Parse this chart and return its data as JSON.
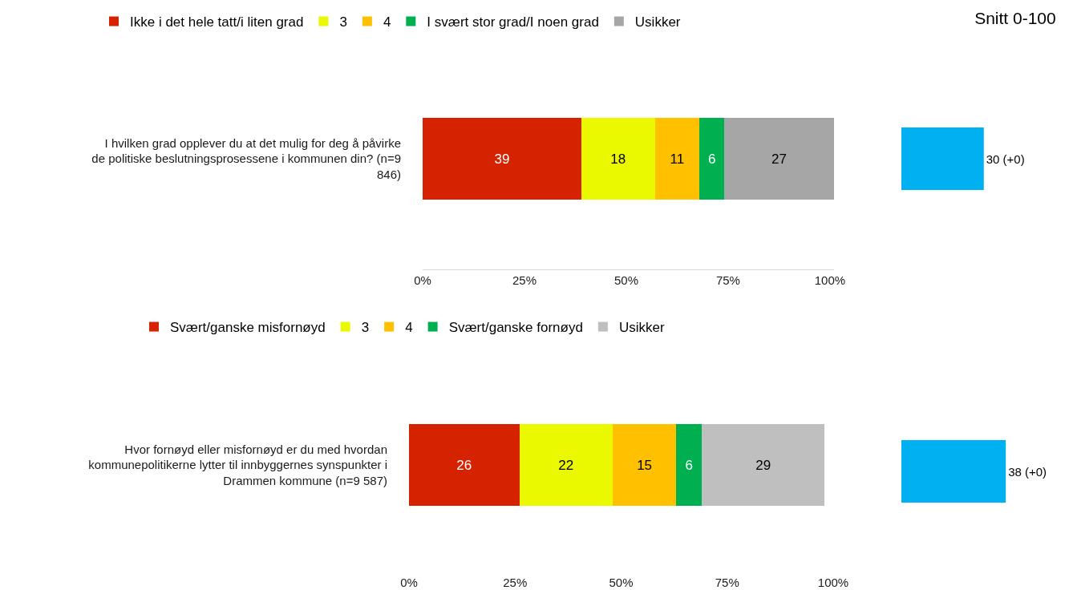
{
  "chart_data": [
    {
      "type": "bar",
      "orientation": "horizontal",
      "stacked": true,
      "categories": [
        "I hvilken grad opplever du at det mulig for deg å påvirke de politiske beslutningsprosessene i kommunen din? (n=9 846)"
      ],
      "series": [
        {
          "name": "Ikke i det hele tatt/i liten grad",
          "color": "#d52200",
          "values": [
            39
          ]
        },
        {
          "name": "3",
          "color": "#eaf800",
          "values": [
            18
          ]
        },
        {
          "name": "4",
          "color": "#ffc000",
          "values": [
            11
          ]
        },
        {
          "name": "I svært stor grad/I noen grad",
          "color": "#00b050",
          "values": [
            6
          ]
        },
        {
          "name": "Usikker",
          "color": "#a6a6a6",
          "values": [
            27
          ]
        }
      ],
      "xlim": [
        0,
        101
      ],
      "xticks": [
        {
          "value": 0,
          "label": "0%"
        },
        {
          "value": 25,
          "label": "25%"
        },
        {
          "value": 50,
          "label": "50%"
        },
        {
          "value": 75,
          "label": "75%"
        },
        {
          "value": 100,
          "label": "100%"
        }
      ],
      "data_labels": true,
      "legend": "top"
    },
    {
      "type": "bar",
      "orientation": "horizontal",
      "stacked": true,
      "categories": [
        "Hvor fornøyd eller misfornøyd er du med hvordan kommunepolitikerne lytter til innbyggernes synspunkter i Drammen kommune (n=9 587)"
      ],
      "series": [
        {
          "name": "Svært/ganske misfornøyd",
          "color": "#d52200",
          "values": [
            26
          ]
        },
        {
          "name": "3",
          "color": "#eaf800",
          "values": [
            22
          ]
        },
        {
          "name": "4",
          "color": "#ffc000",
          "values": [
            15
          ]
        },
        {
          "name": "Svært/ganske fornøyd",
          "color": "#00b050",
          "values": [
            6
          ]
        },
        {
          "name": "Usikker",
          "color": "#bfbfbf",
          "values": [
            29
          ]
        }
      ],
      "xlim": [
        0,
        100
      ],
      "xticks": [
        {
          "value": 0,
          "label": "0%"
        },
        {
          "value": 25,
          "label": "25%"
        },
        {
          "value": 50,
          "label": "50%"
        },
        {
          "value": 75,
          "label": "75%"
        },
        {
          "value": 100,
          "label": "100%"
        }
      ],
      "data_labels": true,
      "legend": "top"
    },
    {
      "type": "bar",
      "orientation": "horizontal",
      "title": "Snitt 0-100",
      "categories": [
        null,
        null
      ],
      "values": [
        30,
        38
      ],
      "value_labels": [
        "30 (+0)",
        "38 (+0)"
      ],
      "color": "#00b0f0",
      "tick_labels": false
    }
  ]
}
